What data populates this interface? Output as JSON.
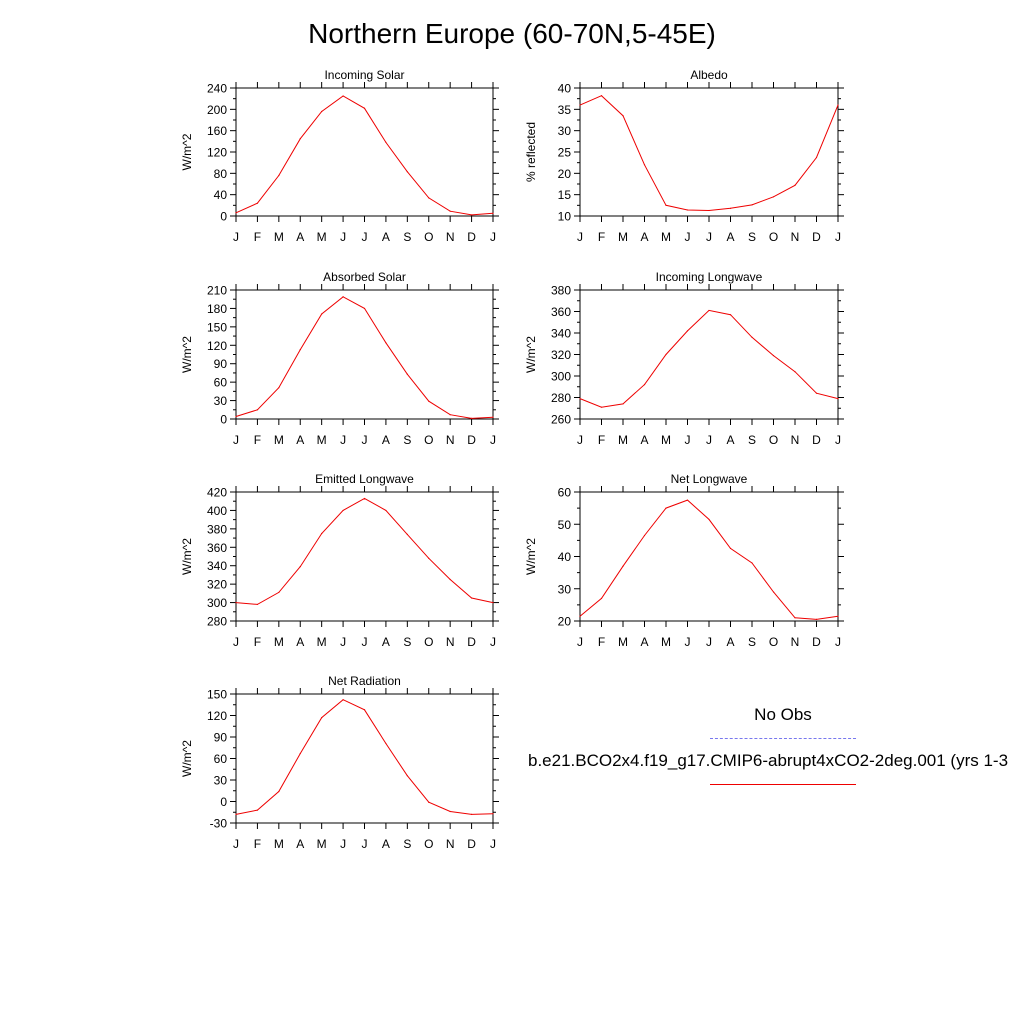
{
  "title": "Northern Europe (60-70N,5-45E)",
  "months": [
    "J",
    "F",
    "M",
    "A",
    "M",
    "J",
    "J",
    "A",
    "S",
    "O",
    "N",
    "D",
    "J"
  ],
  "legend": {
    "obs_label": "No Obs",
    "obs_color": "#7777ee",
    "model_label": "b.e21.BCO2x4.f19_g17.CMIP6-abrupt4xCO2-2deg.001 (yrs 1-3",
    "model_color": "#ee0000"
  },
  "chart_data": [
    {
      "type": "line",
      "title": "Incoming Solar",
      "ylabel": "W/m^2",
      "ylim": [
        0,
        240
      ],
      "yticks": [
        0,
        40,
        80,
        120,
        160,
        200,
        240
      ],
      "categories": [
        "J",
        "F",
        "M",
        "A",
        "M",
        "J",
        "J",
        "A",
        "S",
        "O",
        "N",
        "D",
        "J"
      ],
      "values": [
        6,
        24,
        76,
        145,
        196,
        225,
        202,
        138,
        83,
        34,
        9,
        2,
        5
      ]
    },
    {
      "type": "line",
      "title": "Albedo",
      "ylabel": "% reflected",
      "ylim": [
        10,
        40
      ],
      "yticks": [
        10,
        15,
        20,
        25,
        30,
        35,
        40
      ],
      "categories": [
        "J",
        "F",
        "M",
        "A",
        "M",
        "J",
        "J",
        "A",
        "S",
        "O",
        "N",
        "D",
        "J"
      ],
      "values": [
        36.0,
        38.2,
        33.5,
        22.0,
        12.5,
        11.4,
        11.3,
        11.8,
        12.6,
        14.5,
        17.2,
        23.7,
        36.0
      ]
    },
    {
      "type": "line",
      "title": "Absorbed Solar",
      "ylabel": "W/m^2",
      "ylim": [
        0,
        210
      ],
      "yticks": [
        0,
        30,
        60,
        90,
        120,
        150,
        180,
        210
      ],
      "categories": [
        "J",
        "F",
        "M",
        "A",
        "M",
        "J",
        "J",
        "A",
        "S",
        "O",
        "N",
        "D",
        "J"
      ],
      "values": [
        4,
        15,
        51,
        113,
        171,
        199,
        180,
        124,
        73,
        29,
        7,
        1,
        3
      ]
    },
    {
      "type": "line",
      "title": "Incoming Longwave",
      "ylabel": "W/m^2",
      "ylim": [
        260,
        380
      ],
      "yticks": [
        260,
        280,
        300,
        320,
        340,
        360,
        380
      ],
      "categories": [
        "J",
        "F",
        "M",
        "A",
        "M",
        "J",
        "J",
        "A",
        "S",
        "O",
        "N",
        "D",
        "J"
      ],
      "values": [
        279,
        271,
        274,
        292,
        320,
        342,
        361,
        357,
        336,
        319,
        304,
        284,
        279
      ]
    },
    {
      "type": "line",
      "title": "Emitted Longwave",
      "ylabel": "W/m^2",
      "ylim": [
        280,
        420
      ],
      "yticks": [
        280,
        300,
        320,
        340,
        360,
        380,
        400,
        420
      ],
      "categories": [
        "J",
        "F",
        "M",
        "A",
        "M",
        "J",
        "J",
        "A",
        "S",
        "O",
        "N",
        "D",
        "J"
      ],
      "values": [
        300,
        298,
        311,
        339,
        375,
        400,
        413,
        400,
        374,
        348,
        325,
        305,
        300
      ]
    },
    {
      "type": "line",
      "title": "Net Longwave",
      "ylabel": "W/m^2",
      "ylim": [
        20,
        60
      ],
      "yticks": [
        20,
        30,
        40,
        50,
        60
      ],
      "categories": [
        "J",
        "F",
        "M",
        "A",
        "M",
        "J",
        "J",
        "A",
        "S",
        "O",
        "N",
        "D",
        "J"
      ],
      "values": [
        21.5,
        27.0,
        37.0,
        46.5,
        55.0,
        57.5,
        51.5,
        42.5,
        38.0,
        29.0,
        21.0,
        20.5,
        21.5
      ]
    },
    {
      "type": "line",
      "title": "Net Radiation",
      "ylabel": "W/m^2",
      "ylim": [
        -30,
        150
      ],
      "yticks": [
        -30,
        0,
        30,
        60,
        90,
        120,
        150
      ],
      "categories": [
        "J",
        "F",
        "M",
        "A",
        "M",
        "J",
        "J",
        "A",
        "S",
        "O",
        "N",
        "D",
        "J"
      ],
      "values": [
        -18,
        -12,
        14,
        67,
        117,
        142,
        128,
        81,
        36,
        -1,
        -14,
        -18,
        -17
      ]
    }
  ]
}
